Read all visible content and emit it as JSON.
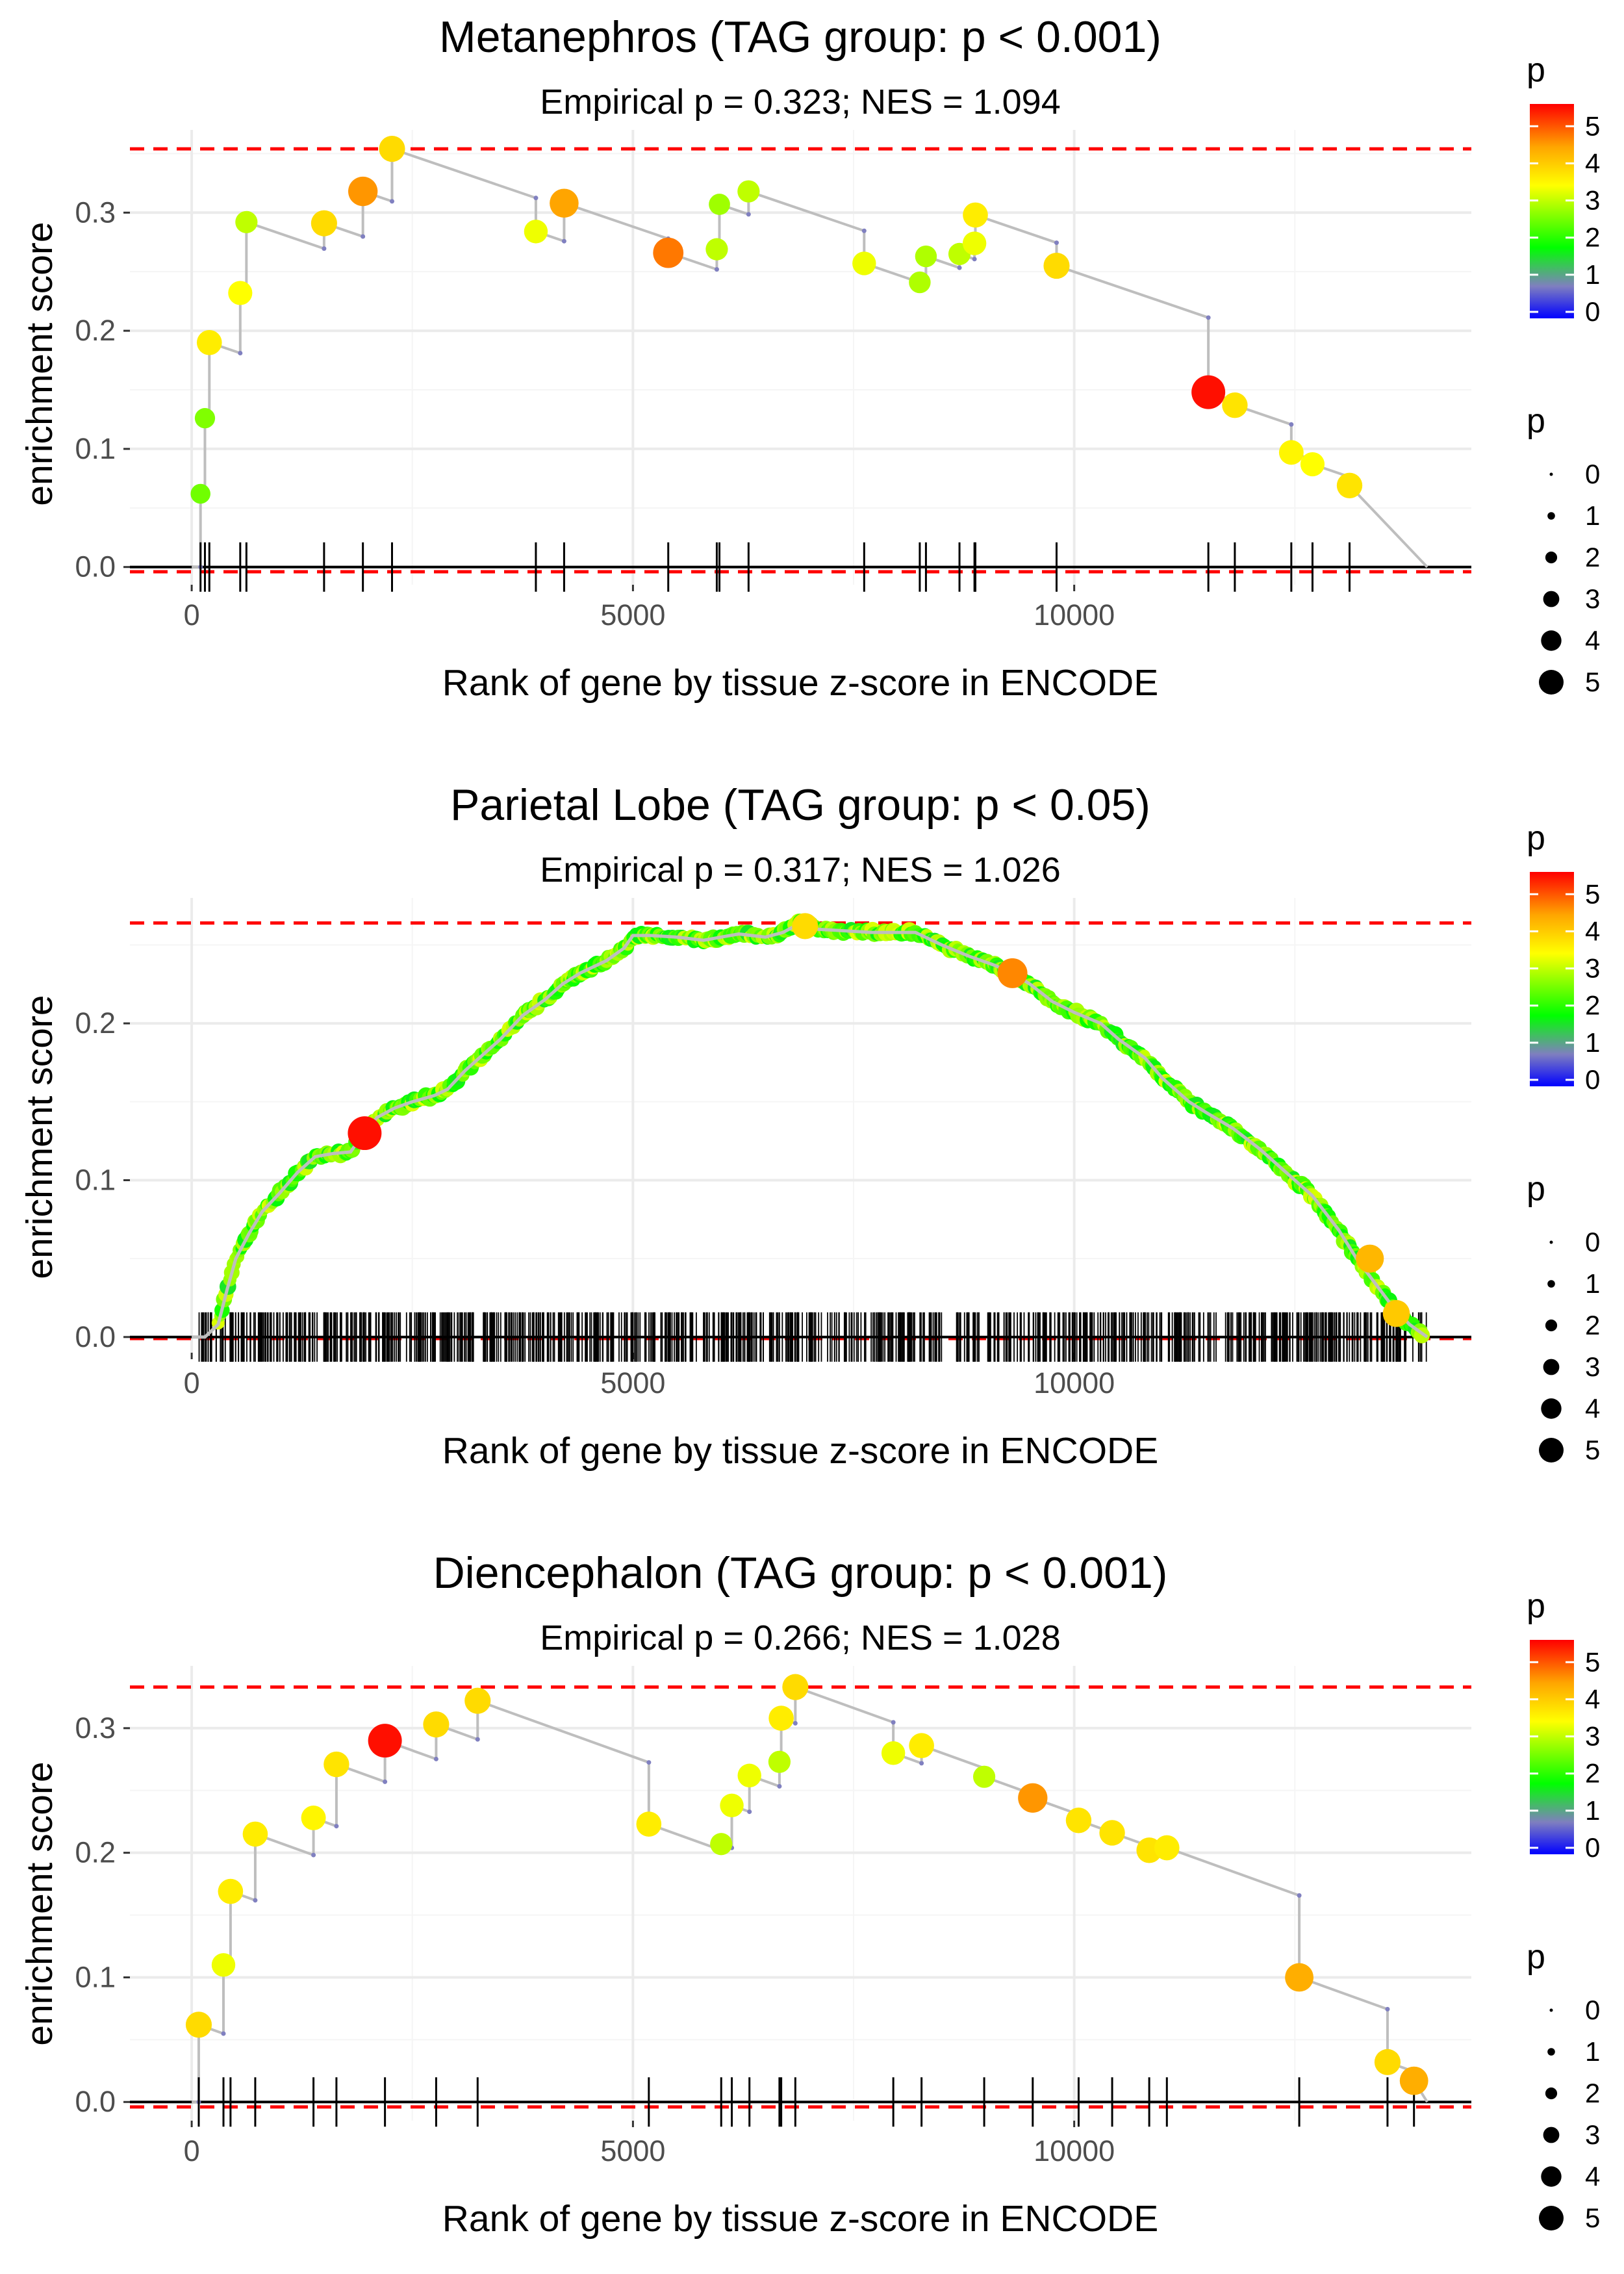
{
  "chart_data": [
    {
      "type": "line",
      "title": "Metanephros (TAG group: p < 0.001)",
      "subtitle": "Empirical p = 0.323; NES = 1.094",
      "xlabel": "Rank of gene by tissue z-score in ENCODE",
      "ylabel": "enrichment score",
      "xlim": [
        -700,
        14500
      ],
      "ylim": [
        -0.015,
        0.37
      ],
      "xticks": [
        0,
        5000,
        10000
      ],
      "xtick_labels": [
        "0",
        "5000",
        "10000"
      ],
      "yticks": [
        0.0,
        0.1,
        0.2,
        0.3
      ],
      "ytick_labels": [
        "0.0",
        "0.1",
        "0.2",
        "0.3"
      ],
      "dashed_lines": [
        0.354,
        -0.004
      ],
      "end_rank": 14000,
      "hits": [
        {
          "x": 100,
          "y": 0.062,
          "p": 2.5
        },
        {
          "x": 150,
          "y": 0.126,
          "p": 2.6
        },
        {
          "x": 200,
          "y": 0.19,
          "p": 3.6
        },
        {
          "x": 550,
          "y": 0.232,
          "p": 3.4
        },
        {
          "x": 620,
          "y": 0.292,
          "p": 3.0
        },
        {
          "x": 1500,
          "y": 0.291,
          "p": 3.8
        },
        {
          "x": 1940,
          "y": 0.318,
          "p": 4.5
        },
        {
          "x": 2270,
          "y": 0.354,
          "p": 3.8
        },
        {
          "x": 3900,
          "y": 0.284,
          "p": 3.3
        },
        {
          "x": 4220,
          "y": 0.308,
          "p": 4.4
        },
        {
          "x": 5400,
          "y": 0.266,
          "p": 4.7
        },
        {
          "x": 5950,
          "y": 0.269,
          "p": 3.0
        },
        {
          "x": 5980,
          "y": 0.307,
          "p": 2.8
        },
        {
          "x": 6310,
          "y": 0.318,
          "p": 3.0
        },
        {
          "x": 7620,
          "y": 0.257,
          "p": 3.3
        },
        {
          "x": 8250,
          "y": 0.241,
          "p": 2.9
        },
        {
          "x": 8320,
          "y": 0.263,
          "p": 2.9
        },
        {
          "x": 8700,
          "y": 0.265,
          "p": 3.0
        },
        {
          "x": 8870,
          "y": 0.274,
          "p": 3.3
        },
        {
          "x": 8880,
          "y": 0.298,
          "p": 3.6
        },
        {
          "x": 9800,
          "y": 0.255,
          "p": 3.8
        },
        {
          "x": 11520,
          "y": 0.148,
          "p": 5.4
        },
        {
          "x": 11820,
          "y": 0.137,
          "p": 3.7
        },
        {
          "x": 12460,
          "y": 0.097,
          "p": 3.5
        },
        {
          "x": 12700,
          "y": 0.087,
          "p": 3.4
        },
        {
          "x": 13120,
          "y": 0.069,
          "p": 3.7
        }
      ]
    },
    {
      "type": "line",
      "title": "Parietal Lobe (TAG group: p < 0.05)",
      "subtitle": "Empirical p = 0.317; NES = 1.026",
      "xlabel": "Rank of gene by tissue z-score in ENCODE",
      "ylabel": "enrichment score",
      "xlim": [
        -700,
        14500
      ],
      "ylim": [
        -0.01,
        0.28
      ],
      "xticks": [
        0,
        5000,
        10000
      ],
      "xtick_labels": [
        "0",
        "5000",
        "10000"
      ],
      "yticks": [
        0.0,
        0.1,
        0.2
      ],
      "ytick_labels": [
        "0.0",
        "0.1",
        "0.2"
      ],
      "dashed_lines": [
        0.264,
        -0.001
      ],
      "end_rank": 14000,
      "curve": [
        [
          0,
          0.0
        ],
        [
          150,
          0.0
        ],
        [
          300,
          0.008
        ],
        [
          400,
          0.03
        ],
        [
          500,
          0.05
        ],
        [
          650,
          0.066
        ],
        [
          800,
          0.08
        ],
        [
          1000,
          0.092
        ],
        [
          1200,
          0.105
        ],
        [
          1400,
          0.115
        ],
        [
          1600,
          0.117
        ],
        [
          1800,
          0.118
        ],
        [
          1950,
          0.13
        ],
        [
          2100,
          0.14
        ],
        [
          2300,
          0.146
        ],
        [
          2500,
          0.15
        ],
        [
          2750,
          0.154
        ],
        [
          2900,
          0.158
        ],
        [
          3100,
          0.17
        ],
        [
          3300,
          0.18
        ],
        [
          3500,
          0.19
        ],
        [
          3750,
          0.205
        ],
        [
          4000,
          0.215
        ],
        [
          4200,
          0.225
        ],
        [
          4400,
          0.232
        ],
        [
          4700,
          0.24
        ],
        [
          4900,
          0.248
        ],
        [
          5000,
          0.256
        ],
        [
          5200,
          0.256
        ],
        [
          5500,
          0.255
        ],
        [
          5800,
          0.253
        ],
        [
          6000,
          0.255
        ],
        [
          6200,
          0.257
        ],
        [
          6500,
          0.255
        ],
        [
          6700,
          0.258
        ],
        [
          6900,
          0.264
        ],
        [
          7100,
          0.26
        ],
        [
          7400,
          0.259
        ],
        [
          7700,
          0.258
        ],
        [
          8000,
          0.258
        ],
        [
          8200,
          0.258
        ],
        [
          8500,
          0.25
        ],
        [
          8800,
          0.243
        ],
        [
          9100,
          0.237
        ],
        [
          9300,
          0.232
        ],
        [
          9500,
          0.225
        ],
        [
          9750,
          0.214
        ],
        [
          10000,
          0.207
        ],
        [
          10300,
          0.2
        ],
        [
          10500,
          0.19
        ],
        [
          10800,
          0.178
        ],
        [
          11000,
          0.165
        ],
        [
          11300,
          0.15
        ],
        [
          11500,
          0.143
        ],
        [
          11800,
          0.133
        ],
        [
          12100,
          0.12
        ],
        [
          12400,
          0.105
        ],
        [
          12700,
          0.09
        ],
        [
          13000,
          0.068
        ],
        [
          13200,
          0.05
        ],
        [
          13400,
          0.035
        ],
        [
          13600,
          0.02
        ],
        [
          13800,
          0.008
        ],
        [
          14000,
          0.0
        ]
      ],
      "highlights": [
        {
          "x": 1960,
          "y": 0.13,
          "p": 5.4
        },
        {
          "x": 9300,
          "y": 0.232,
          "p": 4.6
        },
        {
          "x": 13350,
          "y": 0.05,
          "p": 4.2
        },
        {
          "x": 6950,
          "y": 0.262,
          "p": 3.8
        },
        {
          "x": 13650,
          "y": 0.015,
          "p": 4.0
        }
      ],
      "rug_density": "dense"
    },
    {
      "type": "line",
      "title": "Diencephalon (TAG group: p < 0.001)",
      "subtitle": "Empirical p = 0.266; NES = 1.028",
      "xlabel": "Rank of gene by tissue z-score in ENCODE",
      "ylabel": "enrichment score",
      "xlim": [
        -700,
        14500
      ],
      "ylim": [
        -0.015,
        0.35
      ],
      "xticks": [
        0,
        5000,
        10000
      ],
      "xtick_labels": [
        "0",
        "5000",
        "10000"
      ],
      "yticks": [
        0.0,
        0.1,
        0.2,
        0.3
      ],
      "ytick_labels": [
        "0.0",
        "0.1",
        "0.2",
        "0.3"
      ],
      "dashed_lines": [
        0.333,
        -0.004
      ],
      "end_rank": 14000,
      "hits": [
        {
          "x": 80,
          "y": 0.062,
          "p": 3.8
        },
        {
          "x": 360,
          "y": 0.11,
          "p": 3.3
        },
        {
          "x": 440,
          "y": 0.169,
          "p": 3.6
        },
        {
          "x": 720,
          "y": 0.215,
          "p": 3.6
        },
        {
          "x": 1380,
          "y": 0.228,
          "p": 3.5
        },
        {
          "x": 1640,
          "y": 0.271,
          "p": 3.7
        },
        {
          "x": 2190,
          "y": 0.29,
          "p": 5.4
        },
        {
          "x": 2770,
          "y": 0.303,
          "p": 3.8
        },
        {
          "x": 3240,
          "y": 0.322,
          "p": 3.8
        },
        {
          "x": 5180,
          "y": 0.223,
          "p": 3.6
        },
        {
          "x": 6000,
          "y": 0.207,
          "p": 3.0
        },
        {
          "x": 6120,
          "y": 0.238,
          "p": 3.3
        },
        {
          "x": 6320,
          "y": 0.262,
          "p": 3.3
        },
        {
          "x": 6660,
          "y": 0.273,
          "p": 3.0
        },
        {
          "x": 6680,
          "y": 0.308,
          "p": 3.6
        },
        {
          "x": 6840,
          "y": 0.333,
          "p": 3.8
        },
        {
          "x": 7950,
          "y": 0.28,
          "p": 3.3
        },
        {
          "x": 8270,
          "y": 0.286,
          "p": 3.6
        },
        {
          "x": 8980,
          "y": 0.261,
          "p": 3.0
        },
        {
          "x": 9530,
          "y": 0.244,
          "p": 4.5
        },
        {
          "x": 10050,
          "y": 0.226,
          "p": 3.7
        },
        {
          "x": 10430,
          "y": 0.216,
          "p": 3.7
        },
        {
          "x": 10850,
          "y": 0.202,
          "p": 3.7
        },
        {
          "x": 11050,
          "y": 0.204,
          "p": 3.6
        },
        {
          "x": 12550,
          "y": 0.1,
          "p": 4.3
        },
        {
          "x": 13550,
          "y": 0.032,
          "p": 3.8
        },
        {
          "x": 13850,
          "y": 0.017,
          "p": 4.3
        }
      ]
    }
  ],
  "legends": [
    {
      "color_title": "p",
      "color_ticks": [
        "0",
        "1",
        "2",
        "3",
        "4",
        "5"
      ],
      "size_title": "p",
      "size_labels": [
        "0",
        "1",
        "2",
        "3",
        "4",
        "5"
      ]
    },
    {
      "color_title": "p",
      "color_ticks": [
        "0",
        "1",
        "2",
        "3",
        "4",
        "5"
      ],
      "size_title": "p",
      "size_labels": [
        "0",
        "1",
        "2",
        "3",
        "4",
        "5"
      ]
    },
    {
      "color_title": "p",
      "color_ticks": [
        "0",
        "1",
        "2",
        "3",
        "4",
        "5"
      ],
      "size_title": "p",
      "size_labels": [
        "0",
        "1",
        "2",
        "3",
        "4",
        "5"
      ]
    }
  ],
  "colors": {
    "line": "#bebebe",
    "dashed": "#ff0000",
    "zero_line": "#000000",
    "rug": "#000000",
    "gradient": [
      "#0000ff",
      "#7f7fff",
      "#00ff00",
      "#ffff00",
      "#ffa500",
      "#ff0000"
    ]
  }
}
